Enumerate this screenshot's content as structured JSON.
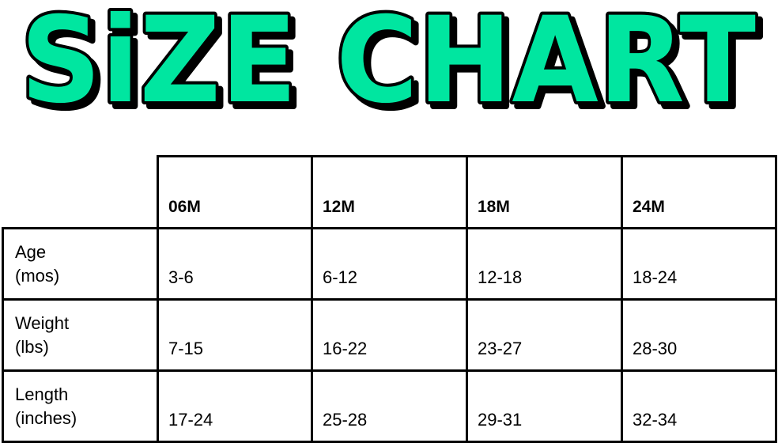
{
  "title": "SiZE CHART",
  "colors": {
    "title_fill": "#00E6A0",
    "title_outline": "#000000"
  },
  "table": {
    "columns": [
      "06M",
      "12M",
      "18M",
      "24M"
    ],
    "rows": [
      {
        "label_line1": "Age",
        "label_line2": "(mos)",
        "values": [
          "3-6",
          "6-12",
          "12-18",
          "18-24"
        ]
      },
      {
        "label_line1": "Weight",
        "label_line2": "(lbs)",
        "values": [
          "7-15",
          "16-22",
          "23-27",
          "28-30"
        ]
      },
      {
        "label_line1": "Length",
        "label_line2": "(inches)",
        "values": [
          "17-24",
          "25-28",
          "29-31",
          "32-34"
        ]
      }
    ]
  }
}
